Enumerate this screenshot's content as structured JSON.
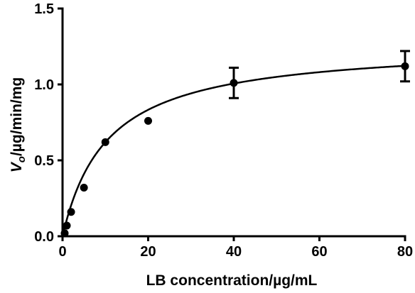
{
  "chart_data": {
    "type": "scatter",
    "title": "",
    "xlabel": "LB concentration/µg/mL",
    "ylabel_var": "V",
    "ylabel_sub": "o",
    "ylabel_rest": "/µg/min/mg",
    "xlim": [
      0,
      80
    ],
    "ylim": [
      0,
      1.5
    ],
    "x_ticks": [
      0,
      20,
      40,
      60,
      80
    ],
    "x_tick_labels": [
      "0",
      "20",
      "40",
      "60",
      "80"
    ],
    "y_ticks": [
      0,
      0.5,
      1.0,
      1.5
    ],
    "y_tick_labels": [
      "0.0",
      "0.5",
      "1.0",
      "1.5"
    ],
    "grid": false,
    "legend": "none",
    "series": [
      {
        "points": [
          {
            "x": 0.5,
            "y": 0.02,
            "err": 0
          },
          {
            "x": 1,
            "y": 0.07,
            "err": 0
          },
          {
            "x": 2,
            "y": 0.16,
            "err": 0
          },
          {
            "x": 5,
            "y": 0.32,
            "err": 0
          },
          {
            "x": 10,
            "y": 0.62,
            "err": 0
          },
          {
            "x": 20,
            "y": 0.76,
            "err": 0
          },
          {
            "x": 40,
            "y": 1.01,
            "err": 0.1
          },
          {
            "x": 80,
            "y": 1.12,
            "err": 0.1
          }
        ],
        "fit": {
          "model": "michaelis-menten",
          "vmax": 1.27,
          "km": 10.5
        }
      }
    ]
  }
}
